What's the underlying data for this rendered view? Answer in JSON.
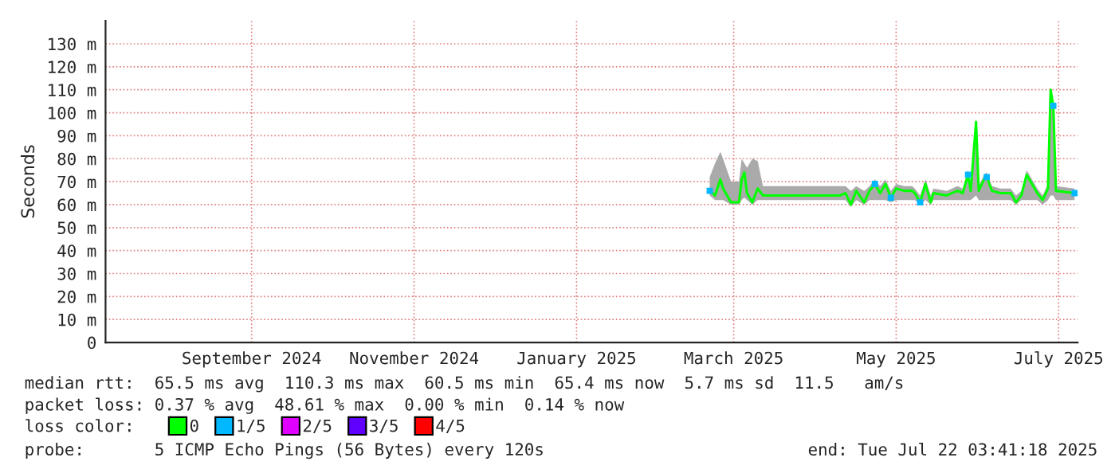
{
  "chart_data": {
    "type": "line",
    "ylabel": "Seconds",
    "xlim": [
      "2024-07-22T03:41",
      "2025-07-22T03:41"
    ],
    "xticks": [
      {
        "value": "2024-09-15",
        "label": "September 2024"
      },
      {
        "value": "2024-11-15",
        "label": "November 2024"
      },
      {
        "value": "2025-01-15",
        "label": "January 2025"
      },
      {
        "value": "2025-03-15",
        "label": "March 2025"
      },
      {
        "value": "2025-05-15",
        "label": "May 2025"
      },
      {
        "value": "2025-07-15",
        "label": "July 2025"
      }
    ],
    "ylim": [
      0,
      140
    ],
    "yticks": [
      0,
      {
        "value": 10,
        "label": "10 m"
      },
      {
        "value": 20,
        "label": "20 m"
      },
      {
        "value": 30,
        "label": "30 m"
      },
      {
        "value": 40,
        "label": "40 m"
      },
      {
        "value": 50,
        "label": "50 m"
      },
      {
        "value": 60,
        "label": "60 m"
      },
      {
        "value": 70,
        "label": "70 m"
      },
      {
        "value": 80,
        "label": "80 m"
      },
      {
        "value": 90,
        "label": "90 m"
      },
      {
        "value": 100,
        "label": "100 m"
      },
      {
        "value": 110,
        "label": "110 m"
      },
      {
        "value": 120,
        "label": "120 m"
      },
      {
        "value": 130,
        "label": "130 m"
      }
    ],
    "grid": true,
    "legend": "bottom",
    "series": [
      {
        "name": "0",
        "color": "#00ff00",
        "x": [
          "2025-03-06",
          "2025-03-08",
          "2025-03-10",
          "2025-03-11",
          "2025-03-14",
          "2025-03-17",
          "2025-03-18",
          "2025-03-19",
          "2025-03-20",
          "2025-03-22",
          "2025-03-24",
          "2025-03-26",
          "2025-03-30",
          "2025-04-24",
          "2025-04-26",
          "2025-04-28",
          "2025-04-30",
          "2025-05-03",
          "2025-05-05",
          "2025-05-07",
          "2025-05-09",
          "2025-05-11",
          "2025-05-13",
          "2025-05-15",
          "2025-05-18",
          "2025-05-21",
          "2025-05-22",
          "2025-05-24",
          "2025-05-26",
          "2025-05-28",
          "2025-05-29",
          "2025-06-03",
          "2025-06-07",
          "2025-06-09",
          "2025-06-11",
          "2025-06-12",
          "2025-06-14",
          "2025-06-15",
          "2025-06-17",
          "2025-06-18",
          "2025-06-20",
          "2025-06-23",
          "2025-06-27",
          "2025-06-29",
          "2025-07-01",
          "2025-07-03",
          "2025-07-05",
          "2025-07-07",
          "2025-07-09",
          "2025-07-11",
          "2025-07-12",
          "2025-07-13",
          "2025-07-14",
          "2025-07-21"
        ],
        "values": [
          66,
          64,
          71,
          67,
          61,
          61,
          71,
          74,
          65,
          61,
          67,
          64,
          64,
          64,
          65,
          60,
          66,
          61,
          66,
          69,
          65,
          69,
          63,
          67,
          66,
          66,
          65,
          61,
          69,
          61,
          65,
          64,
          66,
          65,
          73,
          66,
          96,
          66,
          71,
          72,
          66,
          65,
          65,
          61,
          64,
          73,
          69,
          65,
          62,
          67,
          110,
          103,
          66,
          65
        ],
        "lower": [
          64,
          62,
          62,
          62,
          60,
          60,
          62,
          63,
          62,
          60,
          62,
          62,
          62,
          62,
          62,
          59,
          62,
          60,
          62,
          62,
          62,
          62,
          61,
          62,
          62,
          62,
          62,
          60,
          62,
          60,
          62,
          62,
          62,
          62,
          62,
          62,
          64,
          62,
          62,
          62,
          62,
          62,
          62,
          60,
          62,
          62,
          62,
          62,
          60,
          62,
          64,
          64,
          62,
          62
        ],
        "upper": [
          72,
          78,
          83,
          80,
          70,
          70,
          80,
          78,
          76,
          80,
          79,
          68,
          68,
          68,
          68,
          66,
          68,
          66,
          68,
          71,
          68,
          71,
          66,
          69,
          68,
          68,
          67,
          64,
          71,
          64,
          67,
          66,
          68,
          67,
          75,
          68,
          97,
          68,
          73,
          74,
          68,
          67,
          67,
          64,
          66,
          75,
          71,
          67,
          64,
          69,
          111,
          105,
          68,
          67
        ]
      },
      {
        "name": "1/5",
        "color": "#00b8ff",
        "type": "scatter",
        "marker": "square",
        "x": [
          "2025-03-06",
          "2025-05-07",
          "2025-05-13",
          "2025-05-24",
          "2025-06-11",
          "2025-06-18",
          "2025-07-13",
          "2025-07-21"
        ],
        "values": [
          66,
          69,
          63,
          61,
          73,
          72,
          103,
          65
        ]
      },
      {
        "name": "2/5",
        "color": "#e000ff",
        "type": "scatter",
        "marker": "square"
      },
      {
        "name": "3/5",
        "color": "#6000ff",
        "type": "scatter",
        "marker": "square"
      },
      {
        "name": "4/5",
        "color": "#ff0000",
        "type": "scatter",
        "marker": "square"
      }
    ],
    "annotations": [
      "median rtt:  65.5 ms avg  110.3 ms max  60.5 ms min  65.4 ms now  5.7 ms sd  11.5   am/s",
      "packet loss: 0.37 % avg  48.61 % max  0.00 % min  0.14 % now",
      "loss color:",
      "probe:       5 ICMP Echo Pings (56 Bytes) every 120s",
      "end: Tue Jul 22 03:41:18 2025"
    ]
  }
}
